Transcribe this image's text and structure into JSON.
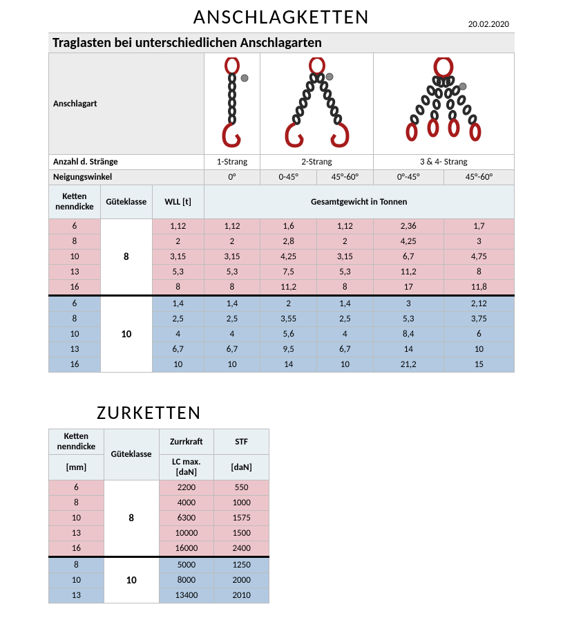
{
  "date": "20.02.2020",
  "anschlag": {
    "title": "ANSCHLAGKETTEN",
    "banner": "Traglasten bei unterschiedlichen Anschlagarten",
    "row_anschlagart": "Anschlagart",
    "row_straenge": "Anzahl d. Stränge",
    "row_neigung": "Neigungswinkel",
    "strands": [
      "1-Strang",
      "2-Strang",
      "3 & 4- Strang"
    ],
    "angles": [
      "0°",
      "0-45°",
      "45°-60°",
      "0°-45°",
      "45°-60°"
    ],
    "sub_ketten": "Ketten nenndicke",
    "sub_klasse": "Güteklasse",
    "sub_wll": "WLL [t]",
    "sub_gesamt": "Gesamtgewicht in Tonnen",
    "klasse8": "8",
    "klasse10": "10",
    "group8": [
      {
        "d": "6",
        "v": [
          "1,12",
          "1,12",
          "1,6",
          "1,12",
          "2,36",
          "1,7"
        ]
      },
      {
        "d": "8",
        "v": [
          "2",
          "2",
          "2,8",
          "2",
          "4,25",
          "3"
        ]
      },
      {
        "d": "10",
        "v": [
          "3,15",
          "3,15",
          "4,25",
          "3,15",
          "6,7",
          "4,75"
        ]
      },
      {
        "d": "13",
        "v": [
          "5,3",
          "5,3",
          "7,5",
          "5,3",
          "11,2",
          "8"
        ]
      },
      {
        "d": "16",
        "v": [
          "8",
          "8",
          "11,2",
          "8",
          "17",
          "11,8"
        ]
      }
    ],
    "group10": [
      {
        "d": "6",
        "v": [
          "1,4",
          "1,4",
          "2",
          "1,4",
          "3",
          "2,12"
        ]
      },
      {
        "d": "8",
        "v": [
          "2,5",
          "2,5",
          "3,55",
          "2,5",
          "5,3",
          "3,75"
        ]
      },
      {
        "d": "10",
        "v": [
          "4",
          "4",
          "5,6",
          "4",
          "8,4",
          "6"
        ]
      },
      {
        "d": "13",
        "v": [
          "6,7",
          "6,7",
          "9,5",
          "6,7",
          "14",
          "10"
        ]
      },
      {
        "d": "16",
        "v": [
          "10",
          "10",
          "14",
          "10",
          "21,2",
          "15"
        ]
      }
    ]
  },
  "zurketten": {
    "title": "ZURKETTEN",
    "sub_ketten": "Ketten nenndicke",
    "sub_mm": "[mm]",
    "sub_klasse": "Güteklasse",
    "sub_zurr": "Zurrkraft",
    "sub_lc": "LC max. [daN]",
    "sub_stf": "STF",
    "sub_dan": "[daN]",
    "klasse8": "8",
    "klasse10": "10",
    "group8": [
      {
        "d": "6",
        "lc": "2200",
        "stf": "550"
      },
      {
        "d": "8",
        "lc": "4000",
        "stf": "1000"
      },
      {
        "d": "10",
        "lc": "6300",
        "stf": "1575"
      },
      {
        "d": "13",
        "lc": "10000",
        "stf": "1500"
      },
      {
        "d": "16",
        "lc": "16000",
        "stf": "2400"
      }
    ],
    "group10": [
      {
        "d": "8",
        "lc": "5000",
        "stf": "1250"
      },
      {
        "d": "10",
        "lc": "8000",
        "stf": "2000"
      },
      {
        "d": "13",
        "lc": "13400",
        "stf": "2010"
      }
    ]
  },
  "colors": {
    "pink": "#ecc5ca",
    "blue": "#b2c9e1",
    "grey": "#ececec",
    "hdr": "#e9f0f4",
    "border": "#bdbdbd",
    "chain_red": "#a61b1b",
    "chain_dark": "#2a2a2a"
  }
}
